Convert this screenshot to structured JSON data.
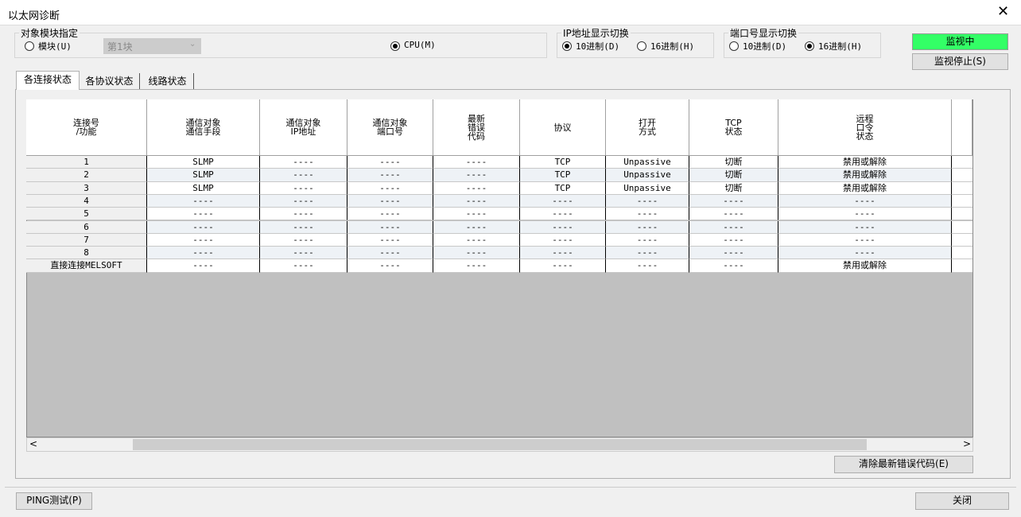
{
  "window": {
    "title": "以太网诊断"
  },
  "target": {
    "label": "对象模块指定",
    "options": [
      "模块(U)",
      "CPU(M)"
    ],
    "selected": 1,
    "module_select": "第1块"
  },
  "ip_display": {
    "label": "IP地址显示切换",
    "options": [
      "10进制(D)",
      "16进制(H)"
    ],
    "selected": 0
  },
  "port_display": {
    "label": "端口号显示切换",
    "options": [
      "10进制(D)",
      "16进制(H)"
    ],
    "selected": 1
  },
  "status": "监视中",
  "stop_button": "监视停止(S)",
  "tabs": [
    "各连接状态",
    "各协议状态",
    "线路状态"
  ],
  "table": {
    "headers": [
      "连接号\n/功能",
      "通信对象\n通信手段",
      "通信对象\nIP地址",
      "通信对象\n端口号",
      "最新\n错误\n代码",
      "协议",
      "打开\n方式",
      "TCP\n状态",
      "远程\n口令\n状态"
    ],
    "rows": [
      [
        "1",
        "SLMP",
        "----",
        "----",
        "----",
        "TCP",
        "Unpassive",
        "切断",
        "禁用或解除"
      ],
      [
        "2",
        "SLMP",
        "----",
        "----",
        "----",
        "TCP",
        "Unpassive",
        "切断",
        "禁用或解除"
      ],
      [
        "3",
        "SLMP",
        "----",
        "----",
        "----",
        "TCP",
        "Unpassive",
        "切断",
        "禁用或解除"
      ],
      [
        "4",
        "----",
        "----",
        "----",
        "----",
        "----",
        "----",
        "----",
        "----"
      ],
      [
        "5",
        "----",
        "----",
        "----",
        "----",
        "----",
        "----",
        "----",
        "----"
      ],
      [
        "6",
        "----",
        "----",
        "----",
        "----",
        "----",
        "----",
        "----",
        "----"
      ],
      [
        "7",
        "----",
        "----",
        "----",
        "----",
        "----",
        "----",
        "----",
        "----"
      ],
      [
        "8",
        "----",
        "----",
        "----",
        "----",
        "----",
        "----",
        "----",
        "----"
      ],
      [
        "直接连接MELSOFT",
        "----",
        "----",
        "----",
        "----",
        "----",
        "----",
        "----",
        "禁用或解除"
      ]
    ]
  },
  "clear_button": "清除最新错误代码(E)",
  "ping_button": "PING测试(P)",
  "close_button": "关闭"
}
